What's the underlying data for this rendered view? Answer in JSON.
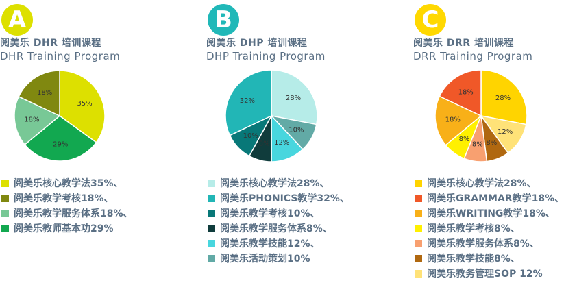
{
  "panels": [
    {
      "badge": "A",
      "badge_color": "#dde000",
      "title_cn": "阅美乐 DHR 培训课程",
      "title_en": "DHR Training Program",
      "legend": [
        "阅美乐核心教学法35%、",
        "阅美乐教学考核18%、",
        "阅美乐教学服务体系18%、",
        "阅美乐教师基本功29%"
      ]
    },
    {
      "badge": "B",
      "badge_color": "#20b8b8",
      "title_cn": "阅美乐 DHP 培训课程",
      "title_en": "DHP Training Program",
      "legend": [
        "阅美乐核心教学法28%、",
        "阅美乐PHONICS教学32%、",
        "阅美乐教学考核10%、",
        "阅美乐教学服务体系8%、",
        "阅美乐教学技能12%、",
        "阅美乐活动策划10%"
      ]
    },
    {
      "badge": "C",
      "badge_color": "#ffd800",
      "title_cn": "阅美乐 DRR 培训课程",
      "title_en": "DRR Training Program",
      "legend": [
        "阅美乐核心教学法28%、",
        "阅美乐GRAMMAR教学18%、",
        "阅美乐WRITING教学18%、",
        "阅美乐教学考核8%、",
        "阅美乐教学服务体系8%、",
        "阅美乐教学技能8%、",
        "阅美乐教务管理SOP 12%"
      ]
    }
  ],
  "chart_data": [
    {
      "type": "pie",
      "title": "DHR Training Program",
      "categories": [
        "阅美乐核心教学法",
        "阅美乐教学考核",
        "阅美乐教学服务体系",
        "阅美乐教师基本功"
      ],
      "values": [
        35,
        18,
        18,
        29
      ],
      "labels": [
        "35%",
        "18%",
        "18%",
        "29%"
      ],
      "order": [
        0,
        3,
        2,
        1
      ],
      "colors": [
        "#dde000",
        "#808810",
        "#78c896",
        "#12a850"
      ]
    },
    {
      "type": "pie",
      "title": "DHP Training Program",
      "categories": [
        "阅美乐核心教学法",
        "阅美乐PHONICS教学",
        "阅美乐教学考核",
        "阅美乐教学服务体系",
        "阅美乐教学技能",
        "阅美乐活动策划"
      ],
      "values": [
        28,
        32,
        10,
        8,
        12,
        10
      ],
      "labels": [
        "28%",
        "32%",
        "10%",
        "8%",
        "12%",
        "10%"
      ],
      "order": [
        0,
        5,
        4,
        3,
        2,
        1
      ],
      "colors": [
        "#b6ece8",
        "#22b6b6",
        "#087878",
        "#103c3c",
        "#48d6de",
        "#62aaa6"
      ]
    },
    {
      "type": "pie",
      "title": "DRR Training Program",
      "categories": [
        "阅美乐核心教学法",
        "阅美乐GRAMMAR教学",
        "阅美乐WRITING教学",
        "阅美乐教学考核",
        "阅美乐教学服务体系",
        "阅美乐教学技能",
        "阅美乐教务管理SOP"
      ],
      "values": [
        28,
        18,
        18,
        8,
        8,
        8,
        12
      ],
      "labels": [
        "28%",
        "18%",
        "18%",
        "8%",
        "8%",
        "8%",
        "12%"
      ],
      "order": [
        0,
        6,
        5,
        4,
        3,
        2,
        1
      ],
      "colors": [
        "#ffd400",
        "#f05828",
        "#f8b018",
        "#fff000",
        "#f8a070",
        "#b06810",
        "#ffe278"
      ]
    }
  ]
}
